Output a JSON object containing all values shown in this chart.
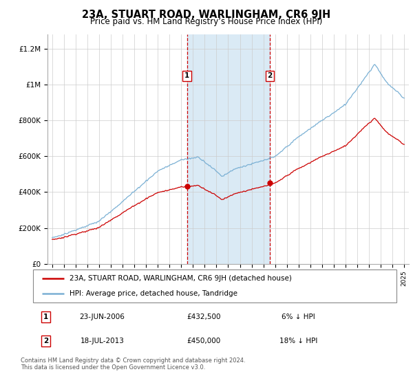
{
  "title": "23A, STUART ROAD, WARLINGHAM, CR6 9JH",
  "subtitle": "Price paid vs. HM Land Registry’s House Price Index (HPI)",
  "ylabel_ticks": [
    "£0",
    "£200K",
    "£400K",
    "£600K",
    "£800K",
    "£1M",
    "£1.2M"
  ],
  "yticks": [
    0,
    200000,
    400000,
    600000,
    800000,
    1000000,
    1200000
  ],
  "ylim": [
    0,
    1280000
  ],
  "xlim": [
    1994.6,
    2025.4
  ],
  "transaction1": {
    "date_num": 2006.48,
    "price": 432500,
    "label": "1"
  },
  "transaction2": {
    "date_num": 2013.55,
    "price": 450000,
    "label": "2"
  },
  "legend_property": "23A, STUART ROAD, WARLINGHAM, CR6 9JH (detached house)",
  "legend_hpi": "HPI: Average price, detached house, Tandridge",
  "table_row1": [
    "1",
    "23-JUN-2006",
    "£432,500",
    "6% ↓ HPI"
  ],
  "table_row2": [
    "2",
    "18-JUL-2013",
    "£450,000",
    "18% ↓ HPI"
  ],
  "footer": "Contains HM Land Registry data © Crown copyright and database right 2024.\nThis data is licensed under the Open Government Licence v3.0.",
  "property_color": "#cc0000",
  "hpi_color": "#7ab0d4",
  "shade_color": "#daeaf5",
  "vline_color": "#cc0000",
  "label_box_color": "#cc0000",
  "grid_color": "#cccccc",
  "legend_border_color": "#888888",
  "table_border_color": "#cc0000"
}
